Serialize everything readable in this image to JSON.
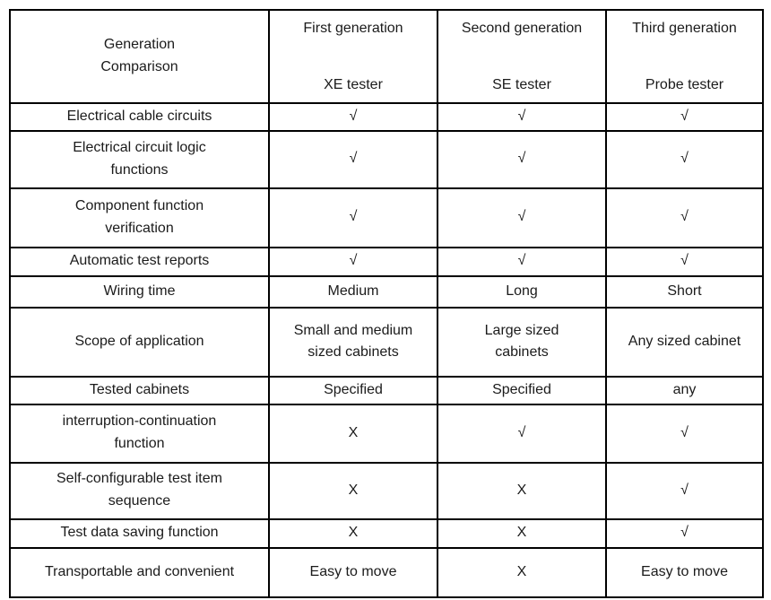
{
  "table": {
    "corner_label": "Generation\nComparison",
    "header": {
      "columns": [
        {
          "generation": "First generation",
          "tester": "XE tester"
        },
        {
          "generation": "Second generation",
          "tester": "SE tester"
        },
        {
          "generation": "Third generation",
          "tester": "Probe tester"
        }
      ]
    },
    "rows": [
      {
        "label": "Electrical cable circuits",
        "values": [
          "√",
          "√",
          "√"
        ]
      },
      {
        "label": "Electrical circuit logic\nfunctions",
        "values": [
          "√",
          "√",
          "√"
        ]
      },
      {
        "label": "Component function\nverification",
        "values": [
          "√",
          "√",
          "√"
        ]
      },
      {
        "label": "Automatic test reports",
        "values": [
          "√",
          "√",
          "√"
        ]
      },
      {
        "label": "Wiring time",
        "values": [
          "Medium",
          "Long",
          "Short"
        ]
      },
      {
        "label": "Scope of application",
        "values": [
          "Small and medium\nsized cabinets",
          "Large sized\ncabinets",
          "Any sized cabinet"
        ]
      },
      {
        "label": "Tested cabinets",
        "values": [
          "Specified",
          "Specified",
          "any"
        ]
      },
      {
        "label": "interruption-continuation\nfunction",
        "values": [
          "X",
          "√",
          "√"
        ]
      },
      {
        "label": "Self-configurable test item\nsequence",
        "values": [
          "X",
          "X",
          "√"
        ]
      },
      {
        "label": "Test data saving function",
        "values": [
          "X",
          "X",
          "√"
        ]
      },
      {
        "label": "Transportable and convenient",
        "values": [
          "Easy to move",
          "X",
          "Easy to move"
        ]
      }
    ],
    "symbols": {
      "supported": "√",
      "not_supported": "X"
    },
    "colors": {
      "border": "#000000",
      "text": "#1b1b1b",
      "background": "#ffffff"
    }
  }
}
